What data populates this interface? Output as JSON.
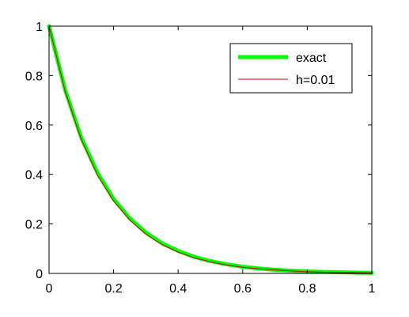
{
  "chart_data": {
    "type": "line",
    "title": "",
    "xlabel": "",
    "ylabel": "",
    "xlim": [
      0,
      1
    ],
    "ylim": [
      0,
      1
    ],
    "xticks": [
      "0",
      "0.2",
      "0.4",
      "0.6",
      "0.8",
      "1"
    ],
    "yticks": [
      "0",
      "0.2",
      "0.4",
      "0.6",
      "0.8",
      "1"
    ],
    "grid": false,
    "legend_position": "top-right",
    "series": [
      {
        "name": "exact",
        "color": "#00ff00",
        "style": "thick solid",
        "x": [
          0,
          0.05,
          0.1,
          0.15,
          0.2,
          0.25,
          0.3,
          0.35,
          0.4,
          0.45,
          0.5,
          0.55,
          0.6,
          0.65,
          0.7,
          0.75,
          0.8,
          0.85,
          0.9,
          0.95,
          1.0
        ],
        "y": [
          1.0,
          0.741,
          0.549,
          0.407,
          0.301,
          0.223,
          0.165,
          0.122,
          0.091,
          0.067,
          0.05,
          0.037,
          0.027,
          0.02,
          0.015,
          0.011,
          0.008,
          0.006,
          0.005,
          0.003,
          0.002
        ]
      },
      {
        "name": "h=0.01",
        "color": "#cc0000",
        "style": "thin solid",
        "x": [
          0,
          0.05,
          0.1,
          0.15,
          0.2,
          0.25,
          0.3,
          0.35,
          0.4,
          0.45,
          0.5,
          0.55,
          0.6,
          0.65,
          0.7,
          0.75,
          0.8,
          0.85,
          0.9,
          0.95,
          1.0
        ],
        "y": [
          1.0,
          0.736,
          0.541,
          0.398,
          0.293,
          0.216,
          0.159,
          0.117,
          0.086,
          0.063,
          0.047,
          0.034,
          0.025,
          0.019,
          0.014,
          0.01,
          0.007,
          0.005,
          0.004,
          0.003,
          0.002
        ]
      }
    ]
  }
}
